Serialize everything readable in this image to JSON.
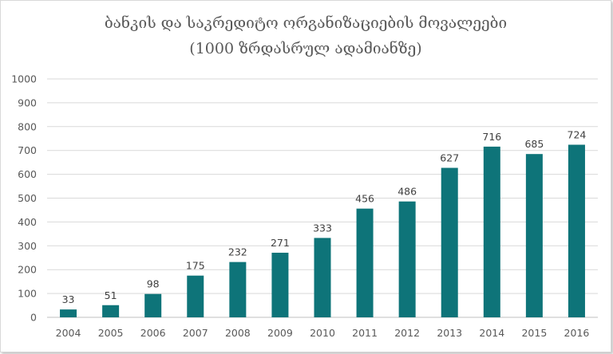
{
  "chart_data": {
    "type": "bar",
    "title_line1": "ბანკის და საკრედიტო ორგანიზაციების მოვალეები",
    "title_line2": "(1000 ზრდასრულ ადამიანზე)",
    "xlabel": "",
    "ylabel": "",
    "categories": [
      "2004",
      "2005",
      "2006",
      "2007",
      "2008",
      "2009",
      "2010",
      "2011",
      "2012",
      "2013",
      "2014",
      "2015",
      "2016"
    ],
    "values": [
      33,
      51,
      98,
      175,
      232,
      271,
      333,
      456,
      486,
      627,
      716,
      685,
      724
    ],
    "ylim": [
      0,
      1000
    ],
    "yticks": [
      0,
      100,
      200,
      300,
      400,
      500,
      600,
      700,
      800,
      900,
      1000
    ],
    "grid": true,
    "legend": "none",
    "bar_color": "#0e7479",
    "grid_color": "#d9d9d9"
  }
}
